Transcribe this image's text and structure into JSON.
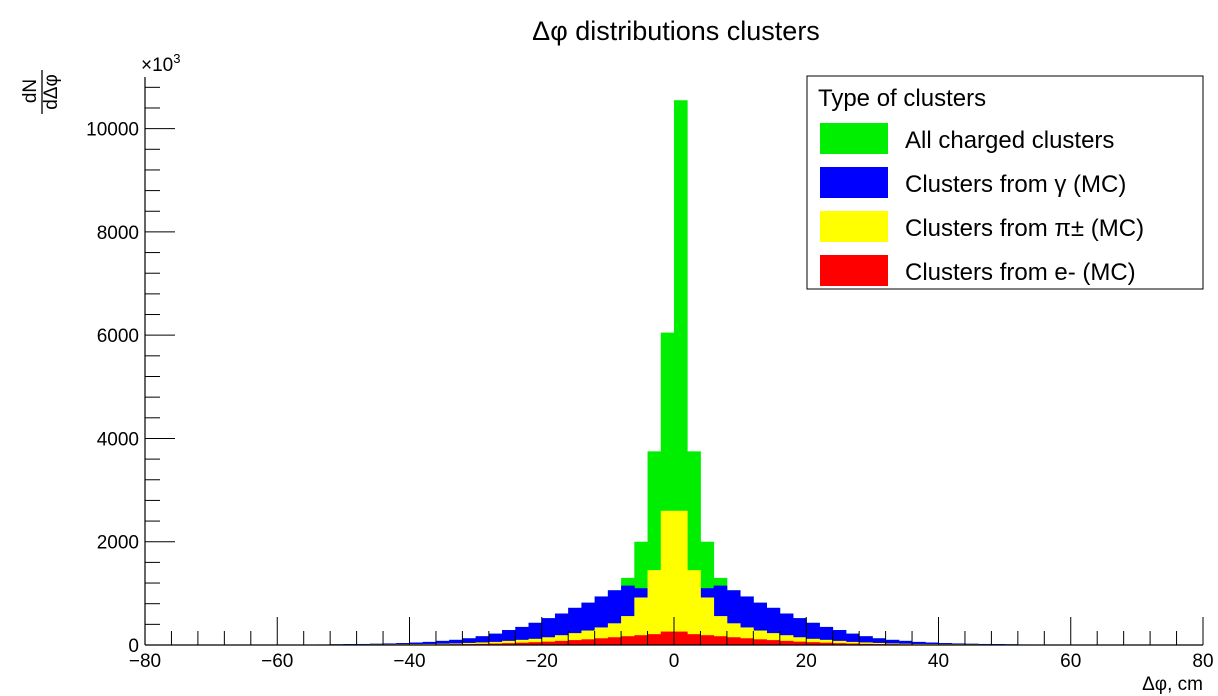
{
  "chart_data": {
    "type": "bar",
    "title": "Δφ distributions clusters",
    "xlabel": "Δφ, cm",
    "ylabel": "dN / dΔφ",
    "y_multiplier": "×10",
    "y_multiplier_exp": "3",
    "xlim": [
      -80,
      80
    ],
    "ylim": [
      0,
      11000
    ],
    "x_ticks": [
      -80,
      -60,
      -40,
      -20,
      0,
      20,
      40,
      60,
      80
    ],
    "x_tick_labels": [
      "−80",
      "−60",
      "−40",
      "−20",
      "0",
      "20",
      "40",
      "60",
      "80"
    ],
    "y_ticks": [
      0,
      2000,
      4000,
      6000,
      8000,
      10000
    ],
    "y_tick_labels": [
      "0",
      "2000",
      "4000",
      "6000",
      "8000",
      "10000"
    ],
    "grid": false,
    "bin_width": 2,
    "bin_centers": [
      -59,
      -57,
      -55,
      -53,
      -51,
      -49,
      -47,
      -45,
      -43,
      -41,
      -39,
      -37,
      -35,
      -33,
      -31,
      -29,
      -27,
      -25,
      -23,
      -21,
      -19,
      -17,
      -15,
      -13,
      -11,
      -9,
      -7,
      -5,
      -3,
      -1,
      1,
      3,
      5,
      7,
      9,
      11,
      13,
      15,
      17,
      19,
      21,
      23,
      25,
      27,
      29,
      31,
      33,
      35,
      37,
      39,
      41,
      43,
      45,
      47,
      49,
      51,
      53,
      55,
      57,
      59
    ],
    "series": [
      {
        "name": "All charged clusters",
        "color": "#00ee00",
        "values": [
          0,
          5,
          8,
          10,
          14,
          18,
          20,
          25,
          30,
          38,
          48,
          60,
          80,
          100,
          130,
          170,
          220,
          290,
          350,
          430,
          520,
          610,
          720,
          820,
          940,
          1060,
          1300,
          2000,
          3750,
          6050,
          10550,
          3750,
          2000,
          1300,
          1060,
          940,
          820,
          720,
          610,
          520,
          430,
          350,
          290,
          220,
          170,
          130,
          100,
          80,
          60,
          48,
          38,
          30,
          25,
          20,
          18,
          14,
          10,
          8,
          5,
          0
        ]
      },
      {
        "name": "Clusters from γ (MC)",
        "color": "#0000ff",
        "values": [
          0,
          5,
          8,
          10,
          14,
          18,
          20,
          25,
          30,
          38,
          48,
          60,
          80,
          100,
          130,
          170,
          220,
          290,
          350,
          430,
          520,
          610,
          720,
          820,
          940,
          1060,
          1150,
          1100,
          1050,
          1000,
          1000,
          1050,
          1100,
          1150,
          1060,
          940,
          820,
          720,
          610,
          520,
          430,
          350,
          290,
          220,
          170,
          130,
          100,
          80,
          60,
          48,
          38,
          30,
          25,
          20,
          18,
          14,
          10,
          8,
          5,
          0
        ]
      },
      {
        "name": "Clusters from π± (MC)",
        "color": "#ffff00",
        "values": [
          0,
          0,
          0,
          0,
          0,
          10,
          12,
          14,
          15,
          16,
          18,
          20,
          25,
          30,
          40,
          50,
          60,
          80,
          100,
          120,
          150,
          190,
          230,
          280,
          340,
          420,
          560,
          920,
          1450,
          2600,
          2600,
          1450,
          920,
          560,
          420,
          340,
          280,
          230,
          190,
          150,
          120,
          100,
          80,
          60,
          50,
          40,
          30,
          25,
          20,
          18,
          16,
          15,
          14,
          12,
          10,
          0,
          0,
          0,
          0,
          0
        ]
      },
      {
        "name": "Clusters from e- (MC)",
        "color": "#ff0000",
        "values": [
          0,
          0,
          0,
          0,
          0,
          2,
          3,
          4,
          5,
          6,
          8,
          10,
          12,
          15,
          18,
          22,
          28,
          35,
          45,
          55,
          65,
          80,
          95,
          110,
          130,
          150,
          170,
          190,
          210,
          260,
          260,
          210,
          190,
          170,
          150,
          130,
          110,
          95,
          80,
          65,
          55,
          45,
          35,
          28,
          22,
          18,
          15,
          12,
          10,
          8,
          6,
          5,
          4,
          3,
          2,
          0,
          0,
          0,
          0,
          0
        ]
      }
    ],
    "legend": {
      "title": "Type of clusters",
      "position": "top-right",
      "entries": [
        {
          "label": "All charged clusters",
          "color": "#00ee00"
        },
        {
          "label": "Clusters from γ (MC)",
          "color": "#0000ff"
        },
        {
          "label": "Clusters from π± (MC)",
          "color": "#ffff00"
        },
        {
          "label": "Clusters from e- (MC)",
          "color": "#ff0000"
        }
      ]
    }
  }
}
